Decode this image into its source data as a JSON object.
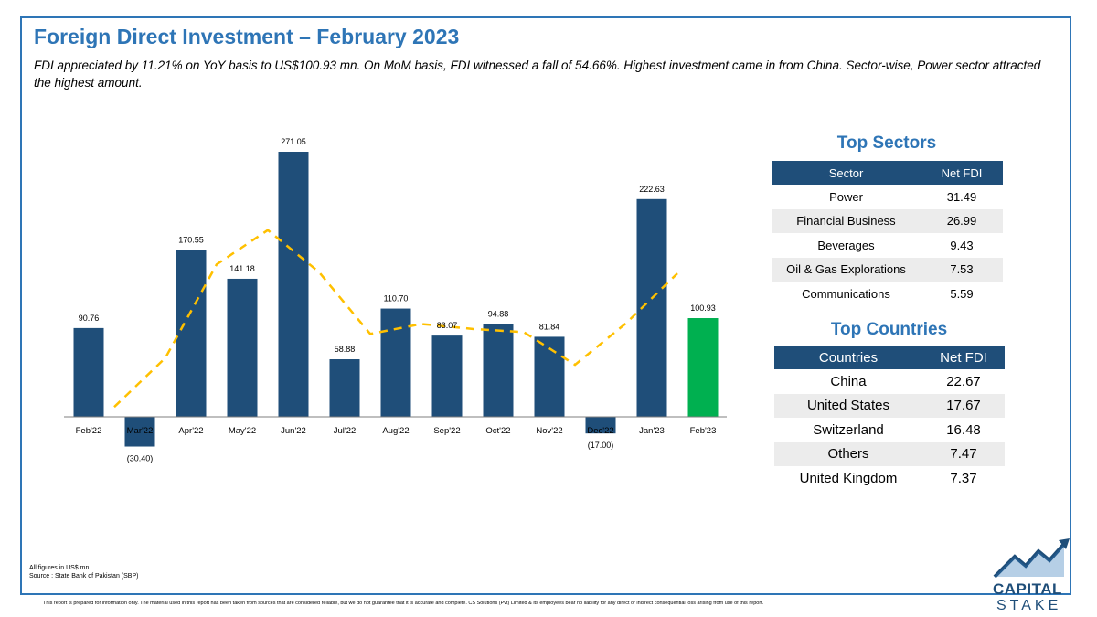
{
  "header": {
    "title": "Foreign Direct Investment – February 2023",
    "subtitle": "FDI appreciated by 11.21% on YoY basis to US$100.93 mn. On MoM basis, FDI witnessed a fall of 54.66%. Highest investment came in from China. Sector-wise, Power sector attracted the highest amount."
  },
  "chart_data": {
    "type": "bar",
    "title": "",
    "xlabel": "",
    "ylabel": "",
    "categories": [
      "Feb'22",
      "Mar'22",
      "Apr'22",
      "May'22",
      "Jun'22",
      "Jul'22",
      "Aug'22",
      "Sep'22",
      "Oct'22",
      "Nov'22",
      "Dec'22",
      "Jan'23",
      "Feb'23"
    ],
    "series": [
      {
        "values": [
          90.76,
          -30.4,
          170.55,
          141.18,
          271.05,
          58.88,
          110.7,
          83.07,
          94.88,
          81.84,
          -17.0,
          222.63,
          100.93
        ],
        "labels": [
          "90.76",
          "(30.40)",
          "170.55",
          "141.18",
          "271.05",
          "58.88",
          "110.70",
          "83.07",
          "94.88",
          "81.84",
          "(17.00)",
          "222.63",
          "100.93"
        ],
        "color": "#1f4e79",
        "highlight_color": "#00b050"
      }
    ],
    "trendline": {
      "style": "dashed",
      "color": "#ffc000",
      "values": [
        10.12,
        60.36,
        155.86,
        190.93,
        147.96,
        84.79,
        94.91,
        89.88,
        86.61,
        53.24,
        95.82,
        146.65
      ]
    },
    "ylim": [
      -45,
      290
    ],
    "grid": false,
    "legend": "none"
  },
  "sectors": {
    "title": "Top Sectors",
    "headers": [
      "Sector",
      "Net FDI"
    ],
    "rows": [
      {
        "name": "Power",
        "value": "31.49"
      },
      {
        "name": "Financial Business",
        "value": "26.99"
      },
      {
        "name": "Beverages",
        "value": "9.43"
      },
      {
        "name": "Oil & Gas Explorations",
        "value": "7.53"
      },
      {
        "name": "Communications",
        "value": "5.59"
      }
    ]
  },
  "countries": {
    "title": "Top Countries",
    "headers": [
      "Countries",
      "Net FDI"
    ],
    "rows": [
      {
        "name": "China",
        "value": "22.67"
      },
      {
        "name": "United States",
        "value": "17.67"
      },
      {
        "name": "Switzerland",
        "value": "16.48"
      },
      {
        "name": "Others",
        "value": "7.47"
      },
      {
        "name": "United Kingdom",
        "value": "7.37"
      }
    ]
  },
  "footer": {
    "units_note": "All figures in US$ mn",
    "source_note": "Source : State Bank of Pakistan (SBP)",
    "disclaimer": "This report is prepared for information only. The material used in this report has been taken from sources that are considered reliable, but we do not guarantee that it is accurate and complete. CS Solutions (Pvt) Limited & its employees bear no liability for any direct or indirect consequential loss arising from use of this report."
  },
  "logo": {
    "line1": "CAPITAL",
    "line2": "STAKE",
    "color": "#1f4e79"
  }
}
